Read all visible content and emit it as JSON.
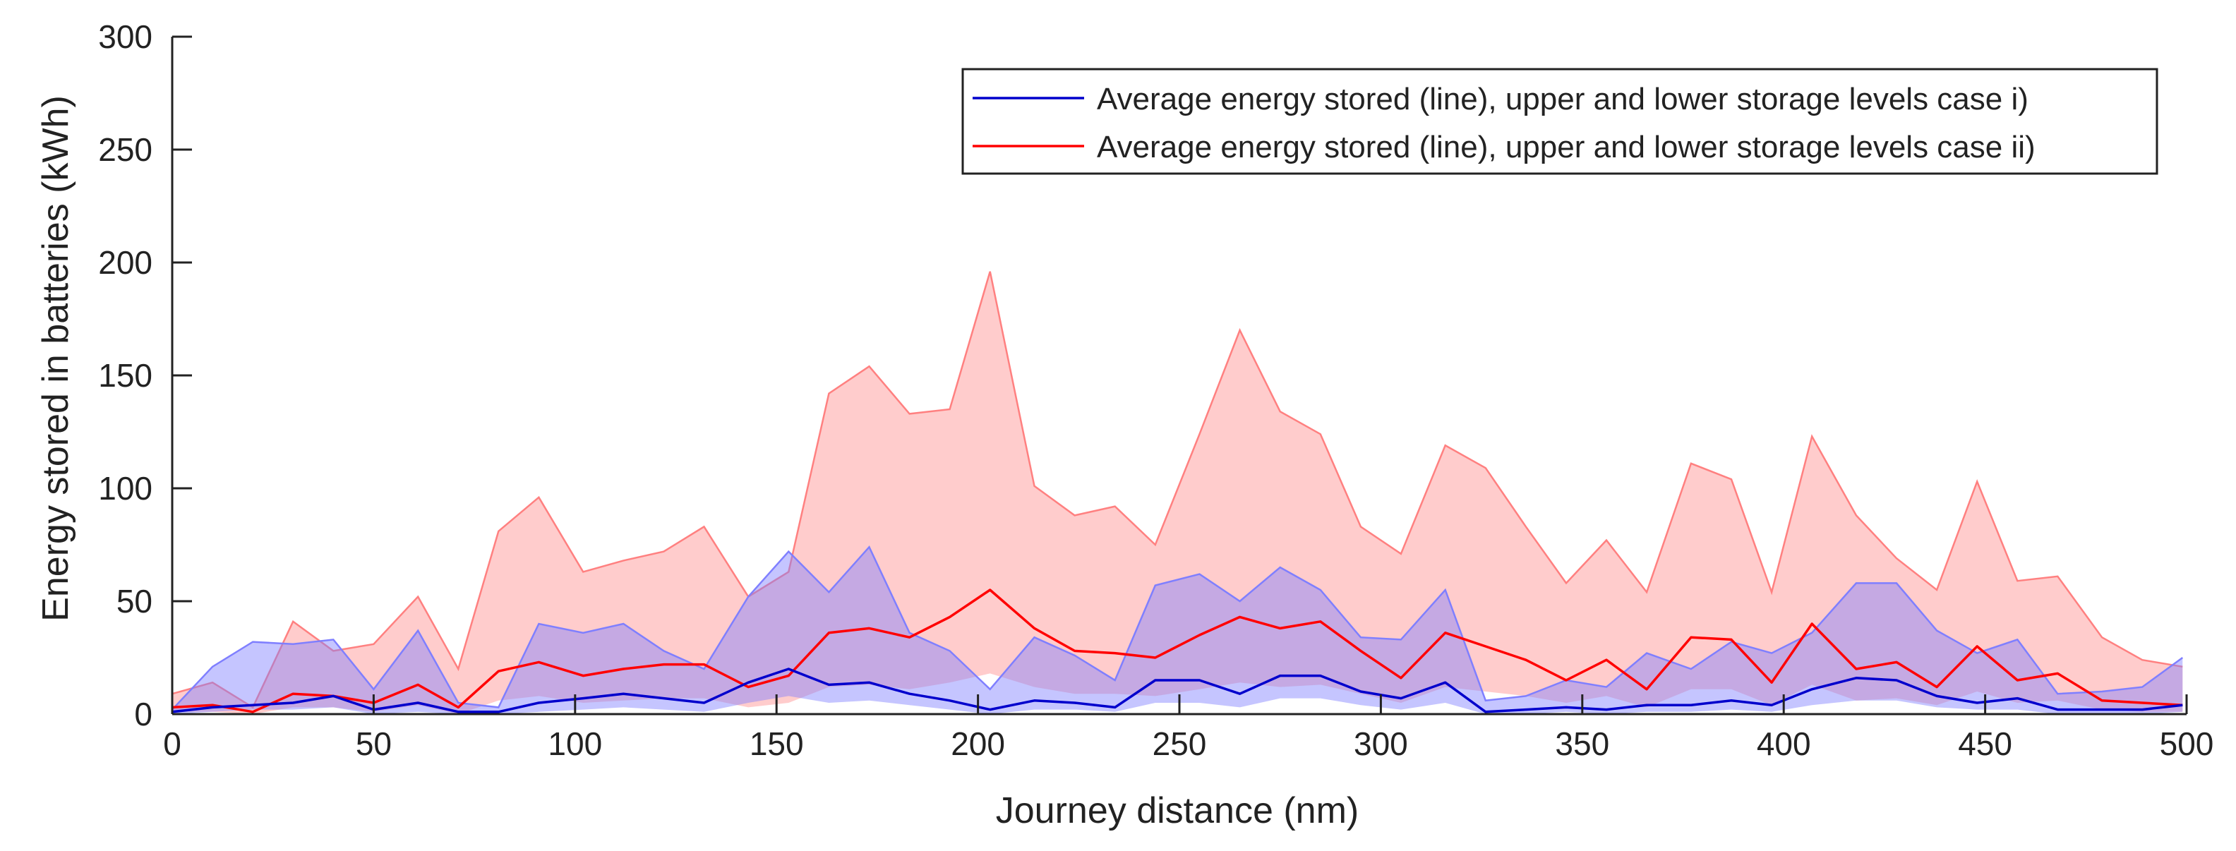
{
  "chart_data": {
    "type": "area",
    "title": "",
    "xlabel": "Journey distance (nm)",
    "ylabel": "Energy stored in batteries (kWh)",
    "xlim": [
      0,
      500
    ],
    "ylim": [
      0,
      300
    ],
    "xticks": [
      0,
      50,
      100,
      150,
      200,
      250,
      300,
      350,
      400,
      450,
      500
    ],
    "yticks": [
      0,
      50,
      100,
      150,
      200,
      250,
      300
    ],
    "grid": false,
    "legend_position": "top-right",
    "x": [
      0,
      10,
      20,
      30,
      40,
      50,
      61,
      71,
      81,
      91,
      102,
      112,
      122,
      132,
      143,
      153,
      163,
      173,
      183,
      193,
      203,
      214,
      224,
      234,
      244,
      255,
      265,
      275,
      285,
      295,
      305,
      316,
      326,
      336,
      346,
      356,
      366,
      377,
      387,
      397,
      407,
      418,
      428,
      438,
      448,
      458,
      468,
      479,
      489,
      499
    ],
    "series": [
      {
        "name": "Average energy stored (line), upper and lower storage levels case i)",
        "color": "#0000cc",
        "fill_color": "#7f7fff",
        "average": [
          1,
          3,
          4,
          5,
          8,
          2,
          5,
          1,
          1,
          5,
          7,
          9,
          7,
          5,
          14,
          20,
          13,
          14,
          9,
          6,
          2,
          6,
          5,
          3,
          15,
          15,
          9,
          17,
          17,
          10,
          7,
          14,
          1,
          2,
          3,
          2,
          4,
          4,
          6,
          4,
          11,
          16,
          15,
          8,
          5,
          7,
          2,
          2,
          2,
          4
        ],
        "upper": [
          2,
          21,
          32,
          31,
          33,
          11,
          37,
          5,
          3,
          40,
          36,
          40,
          28,
          20,
          52,
          72,
          54,
          74,
          36,
          28,
          11,
          34,
          26,
          15,
          57,
          62,
          50,
          65,
          55,
          34,
          33,
          55,
          6,
          8,
          15,
          12,
          27,
          20,
          32,
          27,
          36,
          58,
          58,
          37,
          27,
          33,
          9,
          10,
          12,
          25
        ],
        "lower": [
          0,
          1,
          2,
          2,
          3,
          0,
          1,
          0,
          0,
          1,
          2,
          3,
          2,
          1,
          5,
          8,
          5,
          6,
          4,
          2,
          0,
          2,
          2,
          1,
          5,
          5,
          3,
          7,
          7,
          4,
          2,
          5,
          0,
          0,
          1,
          0,
          1,
          1,
          2,
          1,
          4,
          6,
          6,
          3,
          2,
          2,
          0,
          0,
          0,
          1
        ]
      },
      {
        "name": "Average energy stored (line), upper and lower storage levels case ii)",
        "color": "#ff0000",
        "fill_color": "#ff8080",
        "average": [
          3,
          4,
          1,
          9,
          8,
          5,
          13,
          3,
          19,
          23,
          17,
          20,
          22,
          22,
          12,
          17,
          36,
          38,
          34,
          43,
          55,
          38,
          28,
          27,
          25,
          35,
          43,
          38,
          41,
          28,
          16,
          36,
          30,
          24,
          15,
          24,
          11,
          34,
          33,
          14,
          40,
          20,
          23,
          12,
          30,
          15,
          18,
          6,
          5,
          4
        ],
        "upper": [
          9,
          14,
          3,
          41,
          28,
          31,
          52,
          20,
          81,
          96,
          63,
          68,
          72,
          83,
          52,
          63,
          142,
          154,
          133,
          135,
          196,
          101,
          88,
          92,
          75,
          124,
          170,
          134,
          124,
          83,
          71,
          119,
          109,
          83,
          58,
          77,
          54,
          111,
          104,
          54,
          123,
          88,
          69,
          55,
          103,
          59,
          61,
          34,
          24,
          21
        ],
        "lower": [
          1,
          1,
          0,
          3,
          3,
          1,
          4,
          0,
          6,
          8,
          5,
          6,
          7,
          7,
          3,
          5,
          12,
          13,
          11,
          14,
          18,
          12,
          9,
          9,
          8,
          11,
          14,
          12,
          13,
          9,
          5,
          12,
          10,
          8,
          5,
          8,
          3,
          11,
          11,
          4,
          13,
          6,
          7,
          4,
          10,
          5,
          6,
          2,
          1,
          1
        ]
      }
    ]
  }
}
